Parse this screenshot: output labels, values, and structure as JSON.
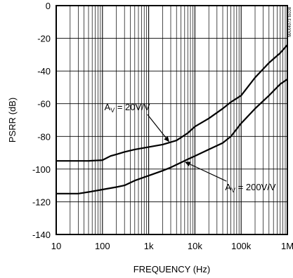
{
  "chart_data": {
    "type": "line",
    "xlabel": "FREQUENCY (Hz)",
    "ylabel": "PSRR (dB)",
    "xscale": "log",
    "xlim": [
      10,
      1000000
    ],
    "ylim": [
      -140,
      0
    ],
    "grid": true,
    "x_tick_labels": [
      {
        "value": 10,
        "label": "10"
      },
      {
        "value": 100,
        "label": "100"
      },
      {
        "value": 1000,
        "label": "1k"
      },
      {
        "value": 10000,
        "label": "10k"
      },
      {
        "value": 100000,
        "label": "100k"
      },
      {
        "value": 1000000,
        "label": "1M"
      }
    ],
    "y_tick_labels": [
      {
        "value": 0,
        "label": "0"
      },
      {
        "value": -20,
        "label": "-20"
      },
      {
        "value": -40,
        "label": "-40"
      },
      {
        "value": -60,
        "label": "-60"
      },
      {
        "value": -80,
        "label": "-80"
      },
      {
        "value": -100,
        "label": "-100"
      },
      {
        "value": -120,
        "label": "-120"
      },
      {
        "value": -140,
        "label": "-140"
      }
    ],
    "series": [
      {
        "x": [
          10,
          20,
          50,
          100,
          150,
          200,
          300,
          500,
          1000,
          2000,
          4000,
          7000,
          10000,
          20000,
          40000,
          60000,
          100000,
          200000,
          400000,
          700000,
          1000000
        ],
        "y": [
          -95,
          -95,
          -95,
          -94.5,
          -92,
          -91,
          -89.5,
          -88,
          -86.5,
          -85,
          -82.5,
          -78,
          -74,
          -69,
          -63,
          -59,
          -55,
          -44,
          -35,
          -29,
          -24
        ],
        "color": "#000000"
      },
      {
        "x": [
          10,
          20,
          30,
          50,
          100,
          200,
          300,
          500,
          1000,
          2000,
          3000,
          5000,
          7000,
          10000,
          20000,
          40000,
          60000,
          100000,
          200000,
          400000,
          700000,
          1000000
        ],
        "y": [
          -115,
          -115,
          -115,
          -114,
          -112.5,
          -111,
          -110,
          -107,
          -104,
          -101,
          -99,
          -96,
          -94,
          -92,
          -88,
          -84,
          -80,
          -72,
          -63,
          -55,
          -48,
          -45
        ],
        "color": "#000000"
      }
    ],
    "annotations": [
      {
        "main": "A",
        "sub": "V",
        "rest": " = 20V/V",
        "x_text": 110,
        "y_text": -64,
        "arrow_to_x": 2800,
        "arrow_to_y": -83.5
      },
      {
        "main": "A",
        "sub": "V",
        "rest": " = 200V/V",
        "x_text": 45000,
        "y_text": -113,
        "arrow_to_x": 6000,
        "arrow_to_y": -95.5
      }
    ],
    "side_code": "MAX4073 toc08"
  }
}
